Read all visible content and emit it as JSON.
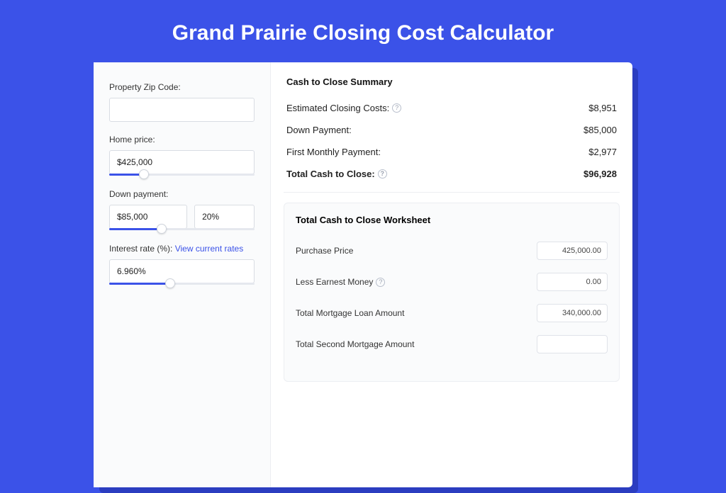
{
  "page": {
    "title": "Grand Prairie Closing Cost Calculator",
    "background_color": "#3b52e8",
    "card_shadow_color": "#2b3dc0"
  },
  "inputs": {
    "zip": {
      "label": "Property Zip Code:",
      "value": ""
    },
    "home_price": {
      "label": "Home price:",
      "value": "$425,000",
      "slider_pct": 24
    },
    "down_payment": {
      "label": "Down payment:",
      "amount": "$85,000",
      "percent": "20%",
      "slider_pct": 36
    },
    "interest_rate": {
      "label_prefix": "Interest rate (%):",
      "link_text": "View current rates",
      "value": "6.960%",
      "slider_pct": 42
    }
  },
  "summary": {
    "title": "Cash to Close Summary",
    "rows": [
      {
        "label": "Estimated Closing Costs:",
        "help": true,
        "value": "$8,951"
      },
      {
        "label": "Down Payment:",
        "help": false,
        "value": "$85,000"
      },
      {
        "label": "First Monthly Payment:",
        "help": false,
        "value": "$2,977"
      }
    ],
    "total": {
      "label": "Total Cash to Close:",
      "help": true,
      "value": "$96,928"
    }
  },
  "worksheet": {
    "title": "Total Cash to Close Worksheet",
    "rows": [
      {
        "label": "Purchase Price",
        "help": false,
        "value": "425,000.00"
      },
      {
        "label": "Less Earnest Money",
        "help": true,
        "value": "0.00"
      },
      {
        "label": "Total Mortgage Loan Amount",
        "help": false,
        "value": "340,000.00"
      },
      {
        "label": "Total Second Mortgage Amount",
        "help": false,
        "value": ""
      }
    ]
  }
}
